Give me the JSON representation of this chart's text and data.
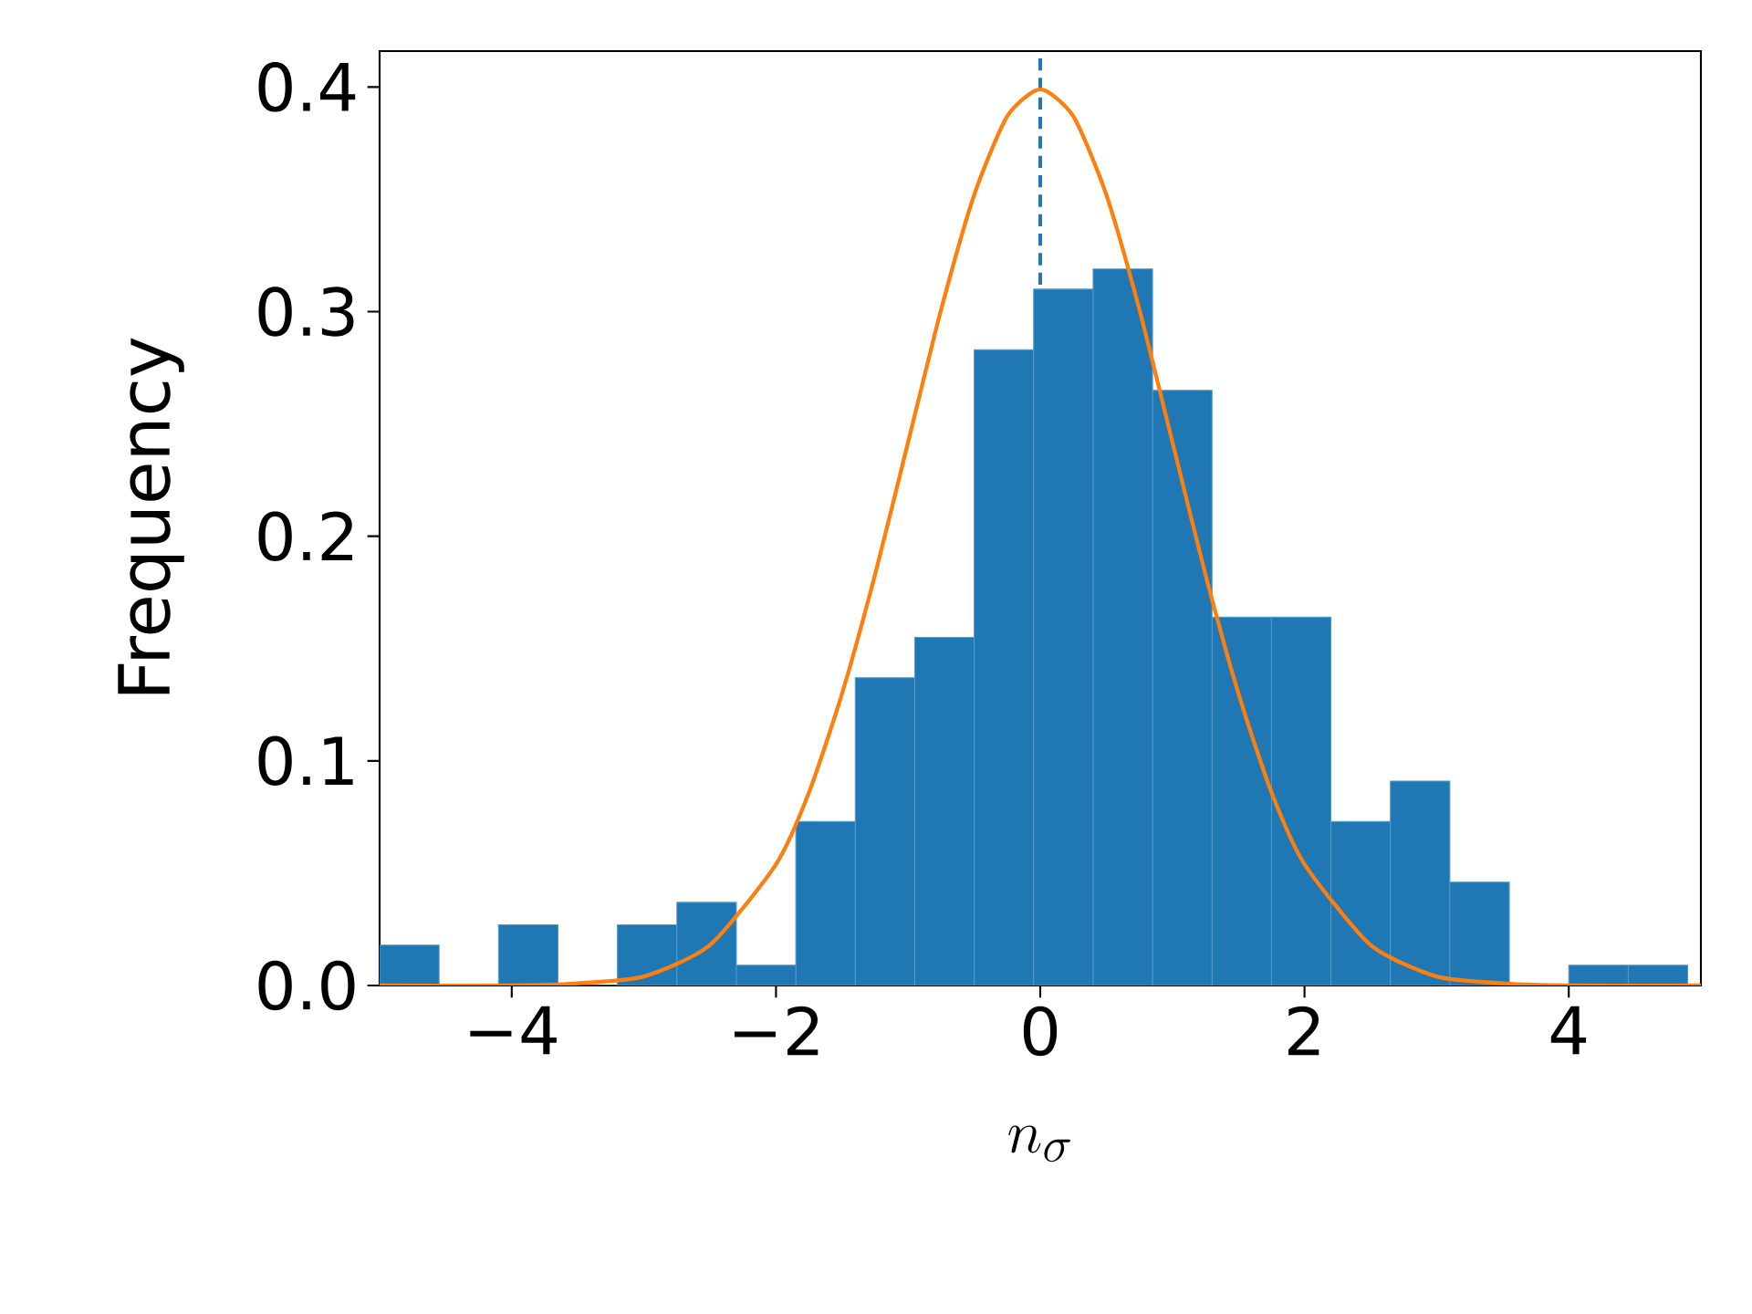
{
  "chart_data": {
    "type": "histogram",
    "xlabel": "n_{\\sigma}",
    "ylabel": "Frequency",
    "color": "#1f77b4",
    "bins": [
      -5,
      -4.55,
      -4.1,
      -3.65,
      -3.2,
      -2.75,
      -2.3,
      -1.85,
      -1.4,
      -0.95,
      -0.5,
      -0.05,
      0.4,
      0.85,
      1.3,
      1.75,
      2.2,
      2.65,
      3.1,
      3.55,
      4.0,
      4.45,
      4.9
    ],
    "values": [
      0.018,
      0,
      0.027,
      0,
      0.027,
      0.037,
      0.009,
      0.073,
      0.137,
      0.155,
      0.283,
      0.31,
      0.319,
      0.265,
      0.164,
      0.164,
      0.073,
      0.091,
      0.046,
      0,
      0.009,
      0.009
    ],
    "series": [
      {
        "type": "line",
        "color": "#ff7f0e",
        "x": [
          -5,
          -4,
          -3.5,
          -3,
          -2.5,
          -2,
          -1.75,
          -1.5,
          -1.25,
          -1,
          -0.75,
          -0.5,
          -0.25,
          0,
          0.25,
          0.5,
          0.75,
          1,
          1.25,
          1.5,
          1.75,
          2,
          2.5,
          3,
          3.5,
          4,
          5
        ],
        "values": [
          0,
          0,
          0.001,
          0.004,
          0.018,
          0.054,
          0.086,
          0.13,
          0.183,
          0.242,
          0.301,
          0.352,
          0.387,
          0.399,
          0.387,
          0.352,
          0.301,
          0.242,
          0.183,
          0.13,
          0.086,
          0.054,
          0.018,
          0.004,
          0.001,
          0,
          0
        ]
      }
    ],
    "ref_lines": [
      {
        "axis": "x",
        "value": 0,
        "color": "#1f77b4",
        "line_style": "dashed"
      }
    ],
    "xlim": [
      -5,
      5
    ],
    "ylim": [
      0,
      0.416
    ],
    "xticks": [
      {
        "value": -4,
        "label": "−4"
      },
      {
        "value": -2,
        "label": "−2"
      },
      0,
      2,
      4
    ],
    "yticks": [
      {
        "value": 0,
        "label": "0.0"
      },
      {
        "value": 0.1,
        "label": "0.1"
      },
      {
        "value": 0.2,
        "label": "0.2"
      },
      {
        "value": 0.3,
        "label": "0.3"
      },
      {
        "value": 0.4,
        "label": "0.4"
      }
    ]
  }
}
